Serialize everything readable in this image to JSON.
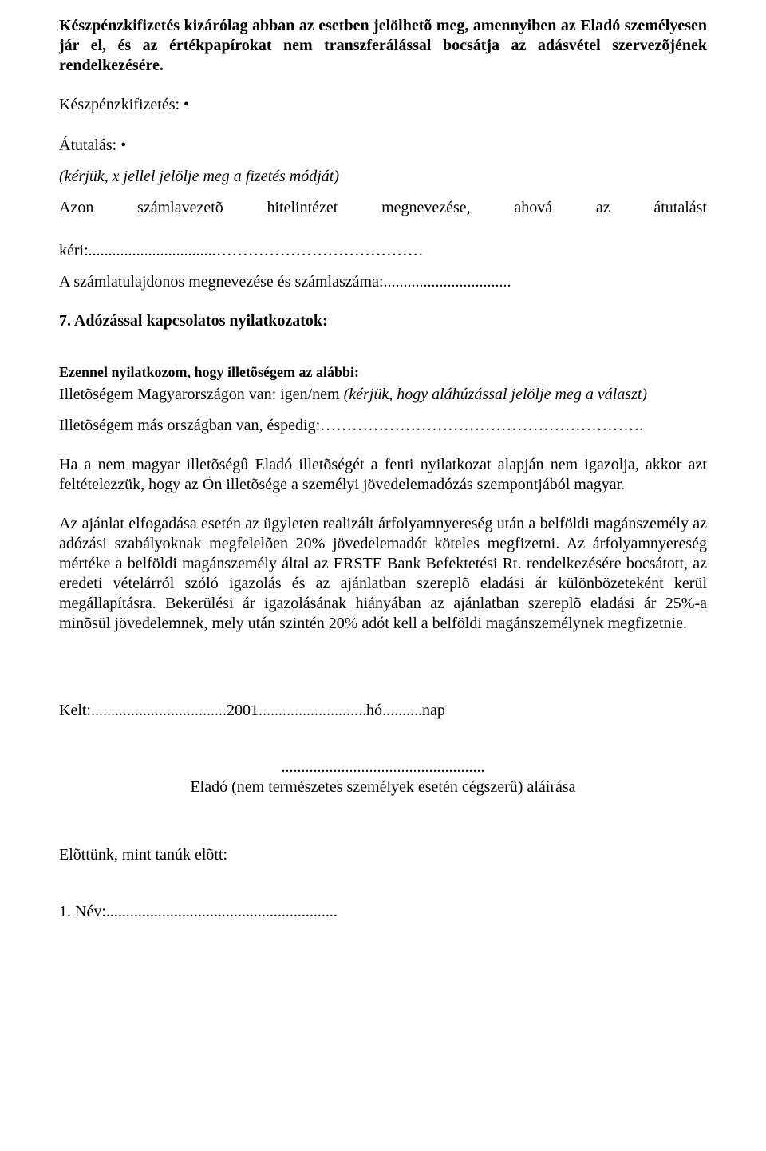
{
  "p1_pre": "Készpénzkifizetés kizárólag abban az esetben jelölhetõ meg, amennyiben az Eladó személyesen jár el, és az értékpapírokat nem transzferálással bocsátja az adásvétel szervezõjének rendelkezésére.",
  "p2_label": "Készpénzkifizetés: •",
  "p3_label": "Átutalás: •",
  "p4_instr": "(kérjük, x jellel jelölje meg a fizetés módját)",
  "p5_spread": "Azon    számlavezetõ    hitelintézet    megnevezése,    ahová    az    átutalást",
  "p5_line2": "kéri:................................…………………………………",
  "p6": "A számlatulajdonos megnevezése és számlaszáma:................................",
  "sec7_title": "7.   Adózással kapcsolatos nyilatkozatok:",
  "p7a": "Ezennel nyilatkozom, hogy illetõségem az alábbi:",
  "p7b_pre": "Illetõségem Magyarországon van: igen/nem ",
  "p7b_it": "(kérjük, hogy aláhúzással jelölje meg a választ)",
  "p7c": "Illetõségem más országban van, éspedig:…………………………………………………….",
  "p8": "Ha a nem magyar illetõségû Eladó  illetõségét a fenti nyilatkozat alapján nem igazolja, akkor azt feltételezzük, hogy az Ön illetõsége a személyi jövedelemadózás szempontjából magyar.",
  "p9": "Az ajánlat elfogadása esetén az ügyleten realizált árfolyamnyereség után a belföldi magánszemély az adózási szabályoknak megfelelõen 20% jövedelemadót köteles megfizetni. Az árfolyamnyereség mértéke a belföldi magánszemély által az ERSTE Bank Befektetési Rt. rendelkezésére bocsátott, az eredeti vételárról szóló igazolás és az ajánlatban szereplõ eladási ár különbözeteként kerül megállapításra. Bekerülési ár igazolásának hiányában az ajánlatban szereplõ eladási ár 25%-a minõsül jövedelemnek, mely után szintén 20% adót kell a belföldi magánszemélynek megfizetnie.",
  "kelt": "Kelt:..................................2001...........................hó..........nap",
  "sig_dots": "...................................................",
  "sig_caption": "Eladó (nem természetes személyek esetén cégszerû) aláírása",
  "witness": "Elõttünk, mint tanúk elõtt:",
  "name1": "1. Név:.........................................................."
}
